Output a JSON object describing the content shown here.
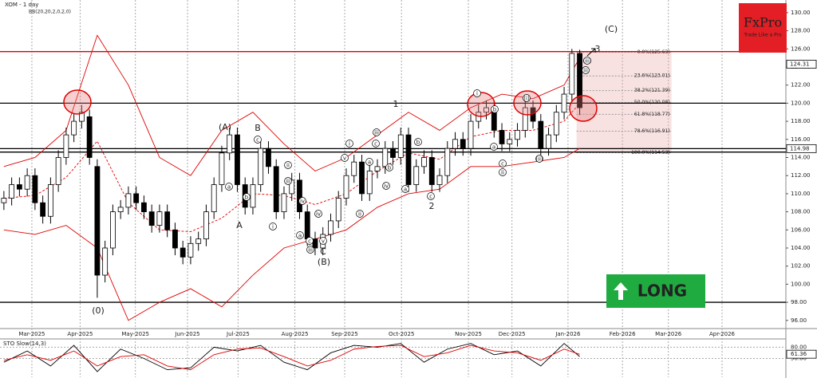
{
  "chart_data": [
    {
      "type": "candlestick",
      "title": "XOM - 1 day",
      "xlim": [
        0,
        101
      ],
      "xticks": [
        {
          "value": 4.1,
          "label": "Mar-2025"
        },
        {
          "value": 10.3,
          "label": "Apr-2025"
        },
        {
          "value": 17.4,
          "label": "May-2025"
        },
        {
          "value": 24.1,
          "label": "Jun-2025"
        },
        {
          "value": 30.6,
          "label": "Jul-2025"
        },
        {
          "value": 37.9,
          "label": "Aug-2025"
        },
        {
          "value": 44.3,
          "label": "Sep-2025"
        },
        {
          "value": 51.6,
          "label": "Oct-2025"
        },
        {
          "value": 60.2,
          "label": "Nov-2025"
        },
        {
          "value": 65.8,
          "label": "Dec-2025"
        },
        {
          "value": 73.0,
          "label": "Jan-2026"
        },
        {
          "value": 80.0,
          "label": "Feb-2026"
        },
        {
          "value": 85.9,
          "label": "Mar-2026"
        },
        {
          "value": 92.8,
          "label": "Apr-2026"
        }
      ],
      "ylim": [
        95.1,
        131.4
      ],
      "yticks": [
        {
          "value": 96,
          "label": "96.00"
        },
        {
          "value": 98,
          "label": "98.00"
        },
        {
          "value": 100,
          "label": "100.00"
        },
        {
          "value": 102,
          "label": "102.00"
        },
        {
          "value": 104,
          "label": "104.00"
        },
        {
          "value": 106,
          "label": "106.00"
        },
        {
          "value": 108,
          "label": "108.00"
        },
        {
          "value": 110,
          "label": "110.00"
        },
        {
          "value": 112,
          "label": "112.00"
        },
        {
          "value": 114,
          "label": "114.00"
        },
        {
          "value": 116,
          "label": "116.00"
        },
        {
          "value": 118,
          "label": "118.00"
        },
        {
          "value": 120,
          "label": "120.00"
        },
        {
          "value": 122,
          "label": "122.00"
        },
        {
          "value": 124,
          "label": "124.00"
        },
        {
          "value": 126,
          "label": "126.00"
        },
        {
          "value": 128,
          "label": "128.00"
        },
        {
          "value": 130,
          "label": "130.00"
        }
      ],
      "price_labels": [
        124.31,
        114.98
      ],
      "open": [
        109,
        109.5,
        111,
        110.5,
        112,
        109,
        107.5,
        111,
        114,
        116.5,
        118,
        118.5,
        113,
        101,
        104,
        108,
        108.5,
        110,
        109,
        108,
        106.5,
        108,
        106,
        104,
        103,
        104.5,
        105,
        108,
        111,
        114.5,
        116.5,
        111,
        108.5,
        111,
        115,
        113,
        108,
        110,
        111.5,
        108,
        105,
        104,
        105.5,
        107,
        109.5,
        112,
        113.5,
        110,
        112.5,
        113,
        115,
        114,
        116.5,
        111,
        113,
        114,
        111,
        112,
        115,
        116,
        115,
        118,
        119,
        119.5,
        117,
        115.5,
        116,
        117,
        119.5,
        118,
        115,
        116.5,
        119,
        121,
        125.5
      ],
      "high": [
        110.3,
        111.8,
        111.8,
        112.8,
        112.8,
        109.8,
        111.8,
        114.8,
        117.3,
        118.8,
        119.8,
        119.3,
        113.8,
        104.8,
        108.8,
        109.3,
        110.8,
        110.8,
        109.8,
        108.8,
        108.8,
        108.8,
        106.8,
        104.8,
        105.3,
        105.8,
        108.8,
        111.8,
        115.3,
        117.3,
        117.3,
        111.8,
        111.8,
        115.8,
        115.8,
        113.8,
        110.8,
        112.3,
        112.3,
        108.8,
        105.8,
        106.3,
        107.8,
        110.3,
        112.8,
        114.3,
        114.3,
        113.3,
        113.8,
        115.8,
        115.8,
        117.3,
        117.3,
        113.8,
        114.8,
        114.8,
        112.8,
        115.8,
        116.8,
        116.8,
        118.8,
        119.8,
        120.3,
        120.3,
        117.8,
        116.8,
        117.8,
        120.3,
        120.3,
        118.8,
        117.3,
        119.8,
        121.8,
        126,
        125.9
      ],
      "low": [
        108.2,
        108.7,
        109.7,
        109.7,
        108.2,
        106.7,
        106.7,
        110.2,
        113.2,
        115.7,
        117.2,
        113.2,
        98.5,
        100.2,
        103.2,
        107.2,
        107.7,
        108.2,
        107.2,
        105.7,
        105.7,
        105.2,
        103.2,
        102.2,
        102.2,
        103.7,
        104.2,
        107.2,
        110.2,
        113.7,
        110.2,
        107.7,
        107.7,
        110.2,
        112.2,
        107.2,
        107.2,
        109.2,
        107.2,
        104.2,
        103.2,
        103.2,
        104.7,
        106.2,
        108.7,
        111.2,
        109.2,
        109.2,
        111.7,
        112.2,
        113.2,
        113.2,
        110.2,
        110.2,
        112.2,
        110.2,
        110.2,
        111.2,
        114.2,
        114.2,
        114.2,
        117.2,
        118.2,
        116.2,
        114.7,
        114.7,
        115.2,
        116.2,
        117.2,
        114.2,
        114.2,
        115.7,
        118.2,
        120.2,
        118.7
      ],
      "close": [
        109.5,
        111,
        110.5,
        112,
        109,
        107.5,
        111,
        114,
        116.5,
        118,
        119,
        114,
        101,
        104,
        108,
        108.5,
        110,
        109,
        108,
        106.5,
        108,
        106,
        104,
        103,
        104.5,
        105,
        108,
        111,
        114.5,
        116.5,
        111,
        108.5,
        111,
        115,
        113,
        108,
        110,
        111.5,
        108,
        105,
        104,
        105.5,
        107,
        109.5,
        112,
        113.5,
        110,
        112.5,
        113,
        115,
        114,
        116.5,
        111,
        113,
        114,
        111,
        112,
        115,
        116,
        115,
        118,
        119,
        119.5,
        117,
        115.5,
        116,
        117,
        119.5,
        118,
        115,
        116.5,
        119,
        121,
        125.5,
        119.5
      ],
      "up_color": "#ffffff",
      "down_color": "#000000",
      "bands": {
        "label": "BB(20,20,2,0,2,0)",
        "color": "#e00000",
        "x": [
          0,
          4,
          8,
          12,
          16,
          20,
          24,
          28,
          32,
          36,
          40,
          44,
          48,
          52,
          56,
          60,
          64,
          68,
          72,
          74
        ],
        "upper": [
          113,
          114,
          117,
          127.5,
          122,
          114,
          112,
          117,
          119,
          115.5,
          112.5,
          114,
          116.5,
          119,
          117,
          119.5,
          121,
          120.5,
          122,
          125
        ],
        "middle": [
          109.5,
          109.8,
          111.8,
          115.8,
          109,
          106,
          105.8,
          107.3,
          110,
          109.8,
          108.8,
          110,
          112.5,
          114.5,
          113.8,
          116.3,
          117,
          117,
          118,
          120
        ],
        "lower": [
          106,
          105.5,
          106.5,
          104,
          96,
          98,
          99.5,
          97.5,
          101,
          104,
          105,
          106,
          108.5,
          110,
          110.5,
          113,
          113,
          113.5,
          114,
          115
        ]
      },
      "hlines": [
        {
          "value": 125.7,
          "color": "#e00000"
        },
        {
          "value": 120,
          "color": "#000000"
        },
        {
          "value": 114.98,
          "color": "#000000"
        },
        {
          "value": 114.6,
          "color": "#000000"
        },
        {
          "value": 98,
          "color": "#000000"
        }
      ],
      "fib_xrange": [
        73.6,
        85.8
      ],
      "fib_levels": [
        {
          "value": 125.63,
          "label": "0.0%(125.63)"
        },
        {
          "value": 123.01,
          "label": "23.6%(123.01)"
        },
        {
          "value": 121.39,
          "label": "38.2%(121.39)"
        },
        {
          "value": 120.08,
          "label": "50.0%(120.08)"
        },
        {
          "value": 118.77,
          "label": "61.8%(118.77)"
        },
        {
          "value": 116.91,
          "label": "78.6%(116.91)"
        },
        {
          "value": 114.53,
          "label": "100.0%(114.53)"
        }
      ],
      "wave_labels": [
        "(A)",
        "B",
        "A",
        "(B)",
        "C",
        "(0)",
        "1",
        "2",
        "3",
        "(C)"
      ],
      "circled_labels": [
        "c",
        "b",
        "a",
        "i",
        "ii",
        "iii",
        "iv",
        "a",
        "c",
        "iii",
        "v",
        "iv",
        "ii",
        "i",
        "v",
        "a",
        "iii",
        "c",
        "b",
        "iv",
        "a",
        "c",
        "b",
        "i",
        "b",
        "a",
        "c",
        "ii",
        "(i)",
        "(ii)",
        "iii",
        "(iii)"
      ],
      "logo": {
        "name": "FxPro",
        "tagline": "Trade Like a Pro"
      },
      "signal": "LONG"
    },
    {
      "type": "line",
      "title": "STO Slow(14,3)",
      "xlim": [
        0,
        101
      ],
      "x": [
        0,
        3,
        6,
        9,
        12,
        15,
        18,
        21,
        24,
        27,
        30,
        33,
        36,
        39,
        42,
        45,
        48,
        51,
        54,
        57,
        60,
        63,
        66,
        69,
        72,
        74
      ],
      "series": [
        {
          "color": "#000000",
          "values": [
            40,
            70,
            30,
            85,
            15,
            75,
            50,
            20,
            25,
            80,
            70,
            85,
            40,
            20,
            65,
            85,
            80,
            90,
            40,
            75,
            90,
            60,
            70,
            30,
            90,
            55
          ]
        },
        {
          "color": "#e00000",
          "values": [
            45,
            60,
            45,
            70,
            30,
            55,
            60,
            30,
            20,
            60,
            75,
            78,
            55,
            30,
            45,
            75,
            82,
            85,
            55,
            65,
            85,
            70,
            65,
            45,
            75,
            61
          ]
        }
      ],
      "ylim": [
        0,
        100
      ],
      "yticks": [
        {
          "value": 80,
          "label": "80.00"
        },
        {
          "value": 50,
          "label": "50.00"
        }
      ],
      "current_value": 61.36
    }
  ]
}
